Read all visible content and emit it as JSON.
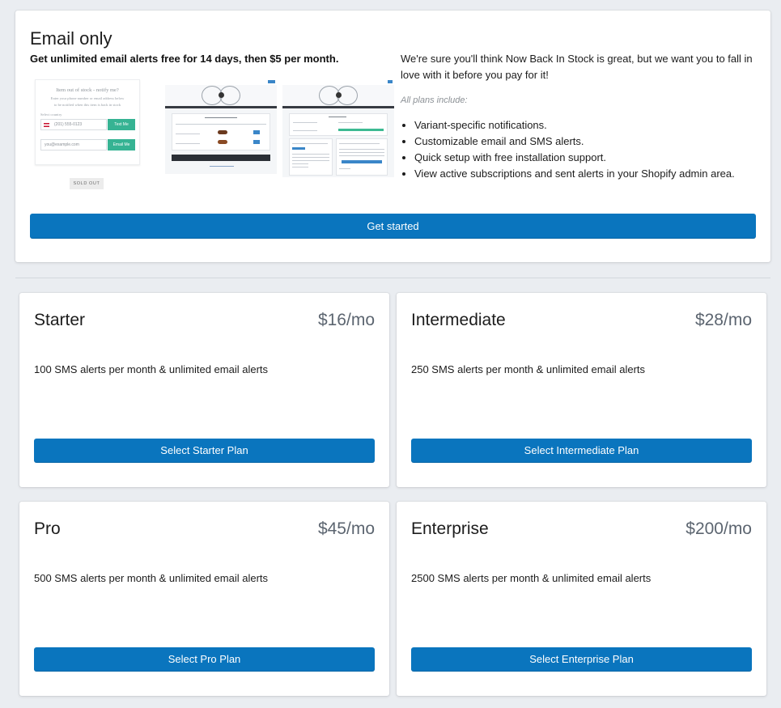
{
  "email_section": {
    "title": "Email only",
    "subtitle": "Get unlimited email alerts free for 14 days, then $5 per month.",
    "intro": "We're sure you'll think Now Back In Stock is great, but we want you to fall in love with it before you pay for it!",
    "plans_include": "All plans include:",
    "features": [
      "Variant-specific notifications.",
      "Customizable email and SMS alerts.",
      "Quick setup with free installation support.",
      "View active subscriptions and sent alerts in your Shopify admin area."
    ],
    "cta_label": "Get started"
  },
  "preview_form": {
    "heading": "Item out of stock - notify me?",
    "line1": "Enter your phone number or email address below",
    "line2": "to be notified when this item is back in stock",
    "country_label": "Select country",
    "phone_placeholder": "(201) 555-0123",
    "text_button": "Text Me",
    "email_placeholder": "you@example.com",
    "email_button": "Email Me",
    "sold_out": "SOLD OUT"
  },
  "plans": [
    {
      "name": "Starter",
      "price": "$16/mo",
      "description": "100 SMS alerts per month & unlimited email alerts",
      "button_label": "Select Starter Plan"
    },
    {
      "name": "Intermediate",
      "price": "$28/mo",
      "description": "250 SMS alerts per month & unlimited email alerts",
      "button_label": "Select Intermediate Plan"
    },
    {
      "name": "Pro",
      "price": "$45/mo",
      "description": "500 SMS alerts per month & unlimited email alerts",
      "button_label": "Select Pro Plan"
    },
    {
      "name": "Enterprise",
      "price": "$200/mo",
      "description": "2500 SMS alerts per month & unlimited email alerts",
      "button_label": "Select Enterprise Plan"
    }
  ],
  "colors": {
    "primary_button": "#0a75be",
    "background": "#eaedf1",
    "card": "#ffffff",
    "preview_green": "#36b393"
  }
}
